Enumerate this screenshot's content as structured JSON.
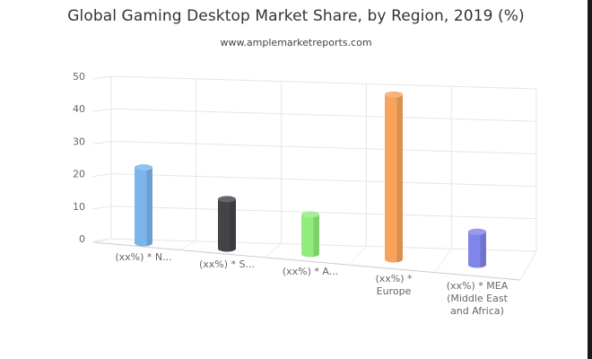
{
  "chart_data": {
    "type": "bar",
    "title": "Global Gaming Desktop Market Share, by Region, 2019 (%)",
    "subtitle": "www.amplemarketreports.com",
    "categories": [
      "(xx%) * N...",
      "(xx%) * S...",
      "(xx%) * A...",
      "(xx%) * Europe",
      "(xx%) * MEA (Middle East and Africa)"
    ],
    "category_lines": [
      [
        "(xx%) * N..."
      ],
      [
        "(xx%) * S..."
      ],
      [
        "(xx%) * A..."
      ],
      [
        "(xx%) *",
        "Europe"
      ],
      [
        "(xx%) * MEA",
        "(Middle East",
        "and Africa)"
      ]
    ],
    "values": [
      23,
      15,
      12,
      50,
      10
    ],
    "colors": [
      "#7cb5ec",
      "#434348",
      "#90ed7d",
      "#f7a35c",
      "#8085e9"
    ],
    "ylim": [
      0,
      50
    ],
    "yticks": [
      0,
      10,
      20,
      30,
      40,
      50
    ],
    "grid": true,
    "legend": "none",
    "style": "3d-cylinder"
  }
}
